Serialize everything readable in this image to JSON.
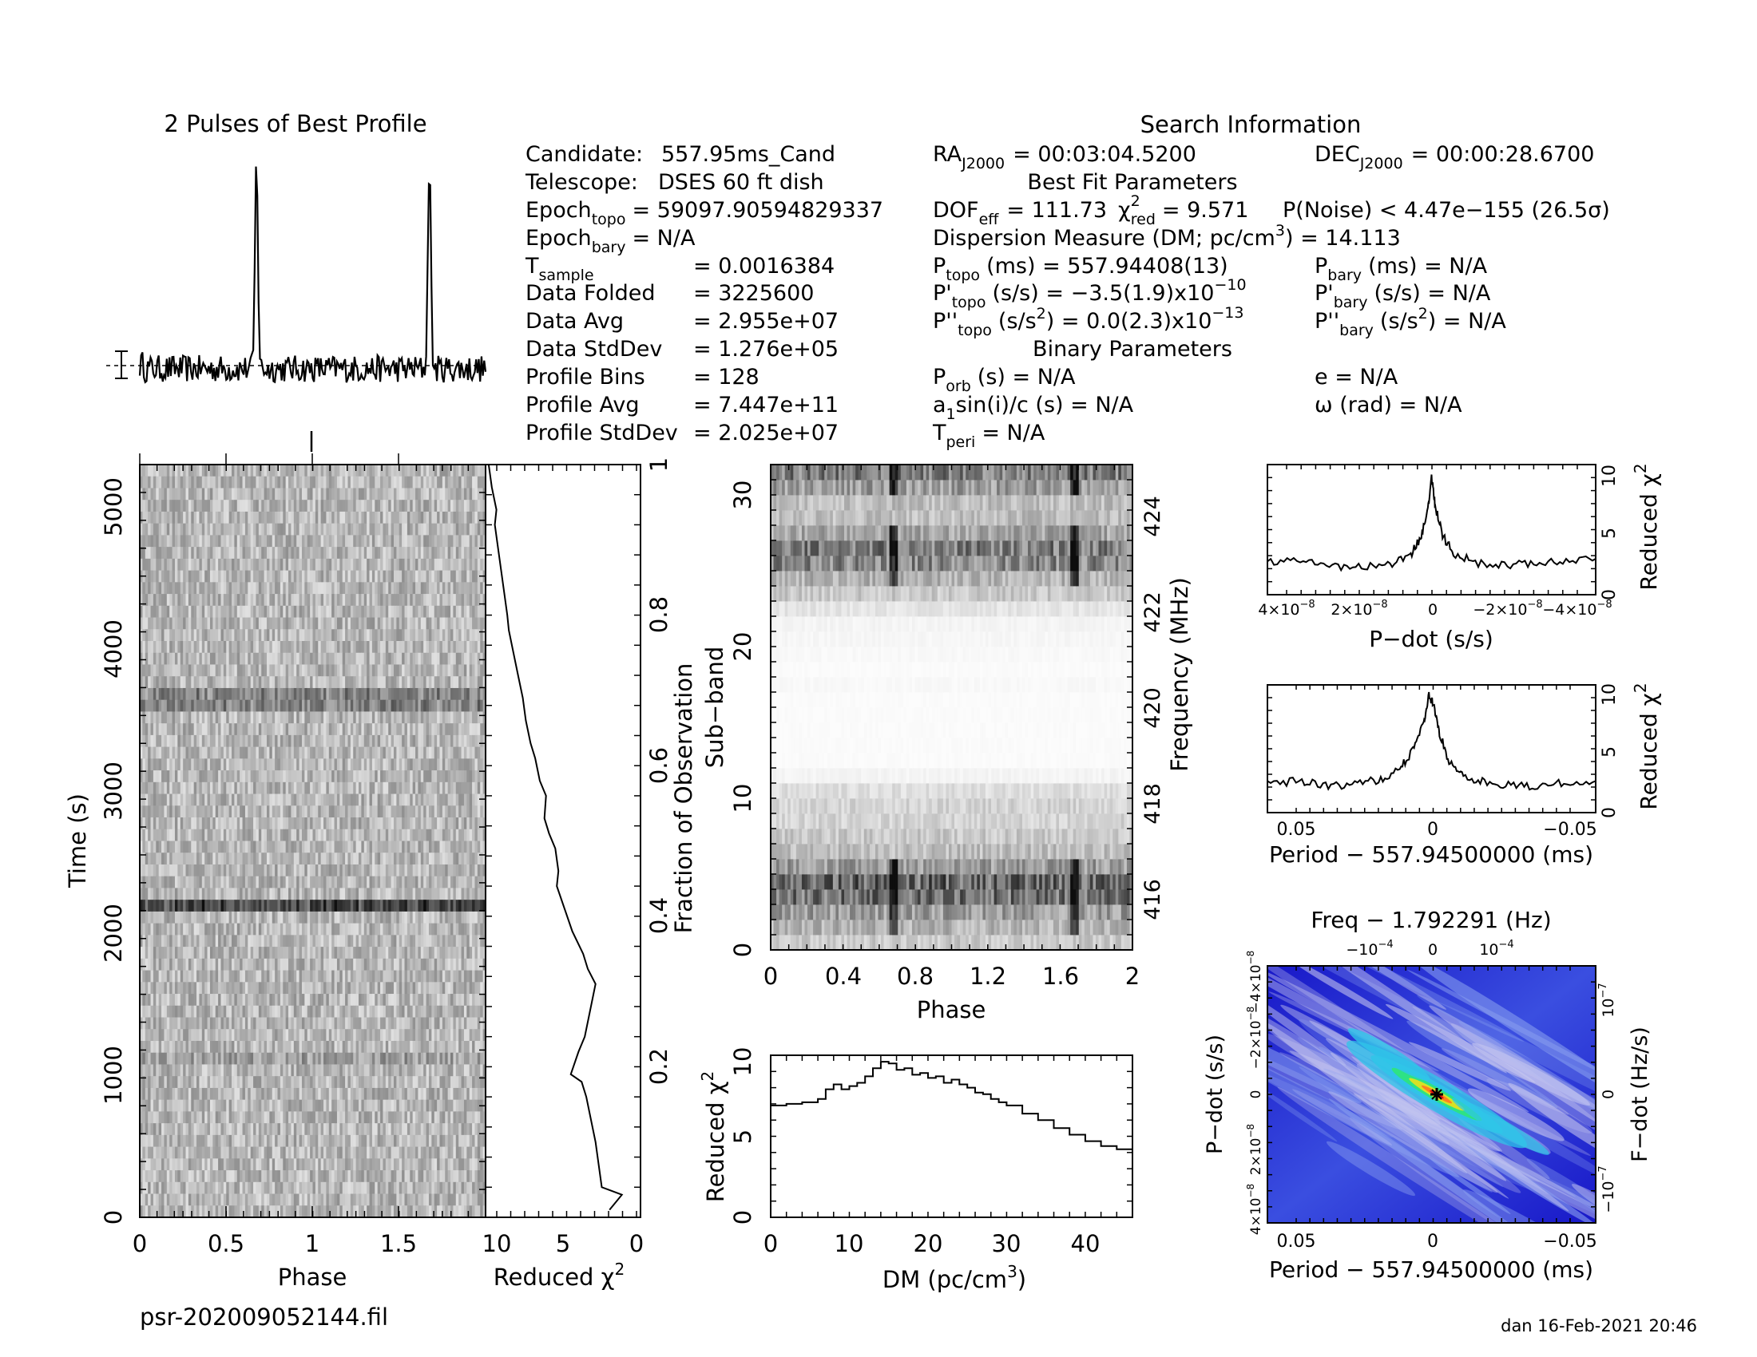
{
  "page": {
    "filename": "psr-202009052144.fil",
    "footer": "dan 16-Feb-2021 20:46"
  },
  "info": {
    "profile_title": "2 Pulses of Best Profile",
    "search_title": "Search Information",
    "best_fit_title": "Best Fit Parameters",
    "binary_title": "Binary Parameters",
    "col1": [
      {
        "label": "Candidate:",
        "value": "557.95ms_Cand"
      },
      {
        "label": "Telescope:",
        "value": "DSES 60 ft dish"
      },
      {
        "label": "Epoch",
        "sub": "topo",
        "value": "= 59097.90594829337"
      },
      {
        "label": "Epoch",
        "sub": "bary",
        "value": "= N/A"
      },
      {
        "label": "T",
        "sub": "sample",
        "value": "=   0.0016384"
      },
      {
        "label": "Data Folded",
        "value": "=   3225600"
      },
      {
        "label": "Data Avg",
        "value": "=   2.955e+07"
      },
      {
        "label": "Data StdDev",
        "value": "=   1.276e+05"
      },
      {
        "label": "Profile Bins",
        "value": "=   128"
      },
      {
        "label": "Profile Avg",
        "value": "=   7.447e+11"
      },
      {
        "label": "Profile StdDev",
        "value": "=   2.025e+07"
      }
    ],
    "ra": "RA",
    "ra_sub": "J2000",
    "ra_value": "= 00:03:04.5200",
    "dec": "DEC",
    "dec_sub": "J2000",
    "dec_value": "= 00:00:28.6700",
    "dof_label": "DOF",
    "dof_sub": "eff",
    "dof_value": "= 111.73",
    "chi_label": "χ",
    "chi_sup": "2",
    "chi_sub": "red",
    "chi_value": "= 9.571",
    "pnoise": "P(Noise) < 4.47e−155   (26.5σ)",
    "dm_line": "Dispersion Measure (DM; pc/cm",
    "dm_sup": "3",
    "dm_value": ") = 14.113",
    "ptopo_label": "P",
    "ptopo_sub": "topo",
    "ptopo_value": "(ms)  =  557.94408(13)",
    "pdtopo_label": "P'",
    "pdtopo_sub": "topo",
    "pdtopo_value": "(s/s)  = −3.5(1.9)x10",
    "pdtopo_exp": "−10",
    "pddtopo_label": "P''",
    "pddtopo_sub": "topo",
    "pddtopo_value": "(s/s",
    "pddtopo_unit_sup": "2",
    "pddtopo_value2": ") = 0.0(2.3)x10",
    "pddtopo_exp": "−13",
    "pbary_label": "P",
    "pbary_sub": "bary",
    "pbary_value": "(ms) = N/A",
    "pdbary_label": "P'",
    "pdbary_sub": "bary",
    "pdbary_value": "(s/s) = N/A",
    "pddbary_label": "P''",
    "pddbary_sub": "bary",
    "pddbary_value": "(s/s",
    "pddbary_sup": "2",
    "pddbary_value2": ") = N/A",
    "porb_label": "P",
    "porb_sub": "orb",
    "porb_value": "(s) = N/A",
    "asini_label": "a",
    "asini_sub": "1",
    "asini_value": "sin(i)/c (s) = N/A",
    "tperi_label": "T",
    "tperi_sub": "peri",
    "tperi_value": "= N/A",
    "e_value": "e = N/A",
    "omega_value": "ω (rad) = N/A"
  },
  "chart_data": [
    {
      "id": "profile",
      "type": "line",
      "title": "2 Pulses of Best Profile",
      "xlim": [
        0,
        2
      ],
      "pulse_phases": [
        0.675,
        1.675
      ],
      "pulse_height_relative": 1.0,
      "baseline_relative": 0.02
    },
    {
      "id": "time-phase",
      "type": "heatmap",
      "xlabel": "Phase",
      "ylabel": "Time (s)",
      "xlim": [
        0,
        2
      ],
      "ylim": [
        0,
        5300
      ],
      "xticks": [
        "0",
        "0.5",
        "1",
        "1.5"
      ],
      "yticks": [
        "0",
        "1000",
        "2000",
        "3000",
        "4000",
        "5000"
      ]
    },
    {
      "id": "time-chi2",
      "type": "line",
      "xlabel": "Reduced χ",
      "xlabel_sup": "2",
      "ylabel": "Fraction of Observation",
      "xlim": [
        10,
        0
      ],
      "ylim": [
        0,
        1
      ],
      "xticks": [
        "10",
        "5",
        "0"
      ],
      "yticks": [
        "0.2",
        "0.4",
        "0.6",
        "0.8",
        "1"
      ],
      "x": [
        2.0,
        1.2,
        2.5,
        2.7,
        2.9,
        3.2,
        3.5,
        3.8,
        4.5,
        4.0,
        3.6,
        3.3,
        2.9,
        3.4,
        3.7,
        4.4,
        4.9,
        5.4,
        5.3,
        5.5,
        5.9,
        6.2,
        6.1,
        6.5,
        6.8,
        7.1,
        7.4,
        7.6,
        7.9,
        8.2,
        8.5,
        8.6,
        8.8,
        9.0,
        9.2,
        9.4,
        9.3,
        9.6,
        9.8
      ],
      "y": [
        0.01,
        0.03,
        0.04,
        0.07,
        0.1,
        0.13,
        0.16,
        0.18,
        0.19,
        0.22,
        0.24,
        0.27,
        0.31,
        0.33,
        0.35,
        0.38,
        0.41,
        0.44,
        0.46,
        0.49,
        0.51,
        0.53,
        0.56,
        0.58,
        0.61,
        0.63,
        0.66,
        0.69,
        0.72,
        0.75,
        0.78,
        0.8,
        0.83,
        0.86,
        0.89,
        0.92,
        0.94,
        0.97,
        1.0
      ]
    },
    {
      "id": "subband-phase",
      "type": "heatmap",
      "xlabel": "Phase",
      "ylabel": "Sub−band",
      "ylabel2": "Frequency (MHz)",
      "xlim": [
        0,
        2
      ],
      "ylim": [
        0,
        32
      ],
      "xticks": [
        "0",
        "0.4",
        "0.8",
        "1.2",
        "1.6",
        "2"
      ],
      "yticks": [
        "0",
        "10",
        "20",
        "30"
      ],
      "freq_ticks": [
        "416",
        "418",
        "420",
        "422",
        "424"
      ],
      "pulse_phases": [
        0.67,
        1.67
      ]
    },
    {
      "id": "dm-chi2",
      "type": "line",
      "xlabel": "DM (pc/cm",
      "xlabel_sup": "3",
      "xlabel_end": ")",
      "ylabel": "Reduced χ",
      "ylabel_sup": "2",
      "xlim": [
        0,
        46
      ],
      "ylim": [
        0,
        10
      ],
      "xticks": [
        "0",
        "10",
        "20",
        "30",
        "40"
      ],
      "yticks": [
        "0",
        "5",
        "10"
      ],
      "x": [
        0,
        2,
        4,
        6,
        7,
        8,
        9,
        10,
        11,
        12,
        13,
        14,
        15,
        16,
        17,
        18,
        19,
        20,
        21,
        22,
        23,
        24,
        25,
        26,
        27,
        28,
        29,
        30,
        32,
        34,
        36,
        38,
        40,
        42,
        44,
        46
      ],
      "y": [
        6.9,
        7.0,
        7.1,
        7.3,
        7.9,
        8.2,
        7.9,
        8.1,
        8.3,
        8.7,
        9.2,
        9.6,
        9.5,
        9.1,
        9.2,
        8.8,
        8.9,
        8.6,
        8.7,
        8.3,
        8.5,
        8.2,
        8.0,
        7.7,
        7.6,
        7.3,
        7.1,
        6.9,
        6.4,
        6.0,
        5.5,
        5.1,
        4.7,
        4.4,
        4.2,
        3.9
      ]
    },
    {
      "id": "pdot-chi2",
      "type": "line",
      "xlabel": "P−dot (s/s)",
      "ylabel": "Reduced χ",
      "ylabel_sup": "2",
      "xlim": [
        4.5e-08,
        -4.5e-08
      ],
      "ylim": [
        0,
        10.5
      ],
      "xtick_labels": [
        "4×10",
        "2×10",
        "0",
        "−2×10",
        "−4×10"
      ],
      "xtick_exp": "−8",
      "yticks": [
        "0",
        "5",
        "10"
      ],
      "x": [
        4.5e-08,
        3.6e-08,
        2.8e-08,
        2e-08,
        1.2e-08,
        6e-09,
        3e-09,
        1e-09,
        0.0,
        -1e-09,
        -3e-09,
        -6e-09,
        -1.2e-08,
        -2e-08,
        -2.8e-08,
        -3.6e-08,
        -4.5e-08
      ],
      "y": [
        2.7,
        2.9,
        2.4,
        2.2,
        2.4,
        3.1,
        4.6,
        7.0,
        9.6,
        7.2,
        4.8,
        3.3,
        2.6,
        2.4,
        2.6,
        2.8,
        2.9
      ]
    },
    {
      "id": "period-chi2",
      "type": "line",
      "xlabel": "Period − 557.94500000 (ms)",
      "ylabel": "Reduced χ",
      "ylabel_sup": "2",
      "xlim": [
        0.062,
        -0.062
      ],
      "ylim": [
        0,
        10.5
      ],
      "xticks": [
        "0.05",
        "0",
        "−0.05"
      ],
      "yticks": [
        "0",
        "5",
        "10"
      ],
      "x": [
        0.062,
        0.05,
        0.04,
        0.03,
        0.02,
        0.012,
        0.007,
        0.003,
        0.001,
        -0.001,
        -0.003,
        -0.007,
        -0.012,
        -0.02,
        -0.03,
        -0.04,
        -0.05,
        -0.062
      ],
      "y": [
        2.4,
        2.6,
        2.2,
        2.3,
        2.7,
        3.6,
        5.1,
        7.4,
        9.6,
        8.8,
        6.5,
        4.0,
        3.0,
        2.5,
        2.3,
        2.2,
        2.4,
        2.6
      ]
    },
    {
      "id": "period-pdot",
      "type": "heatmap",
      "title": "Freq − 1.792291 (Hz)",
      "xlabel": "Period − 557.94500000 (ms)",
      "ylabel": "P−dot (s/s)",
      "ylabel2": "F−dot (Hz/s)",
      "xticks": [
        "0.05",
        "0",
        "−0.05"
      ],
      "freq_ticks": [
        "−10",
        "0",
        "10"
      ],
      "freq_tick_exp": "−4",
      "pdot_ticks": [
        "4×10",
        "2×10",
        "0",
        "−2×10",
        "−4×10"
      ],
      "pdot_tick_exp": "−8",
      "fdot_ticks": [
        "10",
        "0",
        "−10"
      ],
      "fdot_tick_exp": "−7",
      "colors": [
        "#1b1bd6",
        "#3a6cf0",
        "#2fc6e8",
        "#2ee67a",
        "#e0e020",
        "#ff8020",
        "#e01010"
      ],
      "best": [
        0.0,
        0.0
      ]
    }
  ]
}
